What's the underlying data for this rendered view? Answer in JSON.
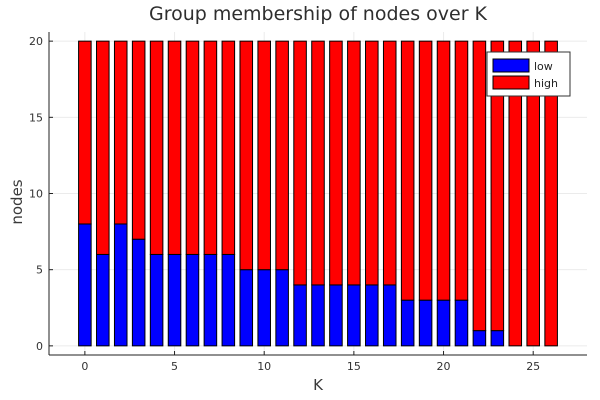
{
  "chart_data": {
    "type": "bar",
    "stacked": true,
    "title": "Group membership of nodes over K",
    "xlabel": "K",
    "ylabel": "nodes",
    "x": [
      0,
      1,
      2,
      3,
      4,
      5,
      6,
      7,
      8,
      9,
      10,
      11,
      12,
      13,
      14,
      15,
      16,
      17,
      18,
      19,
      20,
      21,
      22,
      23,
      24,
      25,
      26
    ],
    "series": [
      {
        "name": "low",
        "color": "#0000ff",
        "values": [
          8,
          6,
          8,
          7,
          6,
          6,
          6,
          6,
          6,
          5,
          5,
          5,
          4,
          4,
          4,
          4,
          4,
          4,
          3,
          3,
          3,
          3,
          1,
          1,
          0,
          0,
          0
        ]
      },
      {
        "name": "high",
        "color": "#ff0000",
        "values": [
          12,
          14,
          12,
          13,
          14,
          14,
          14,
          14,
          14,
          15,
          15,
          15,
          16,
          16,
          16,
          16,
          16,
          16,
          17,
          17,
          17,
          17,
          19,
          19,
          20,
          20,
          20
        ]
      }
    ],
    "xlim": [
      -2,
      28
    ],
    "ylim": [
      -0.6,
      20.6
    ],
    "xticks": [
      0,
      5,
      10,
      15,
      20,
      25
    ],
    "yticks": [
      0,
      5,
      10,
      15,
      20
    ],
    "grid": true,
    "legend_position": "top-right"
  }
}
